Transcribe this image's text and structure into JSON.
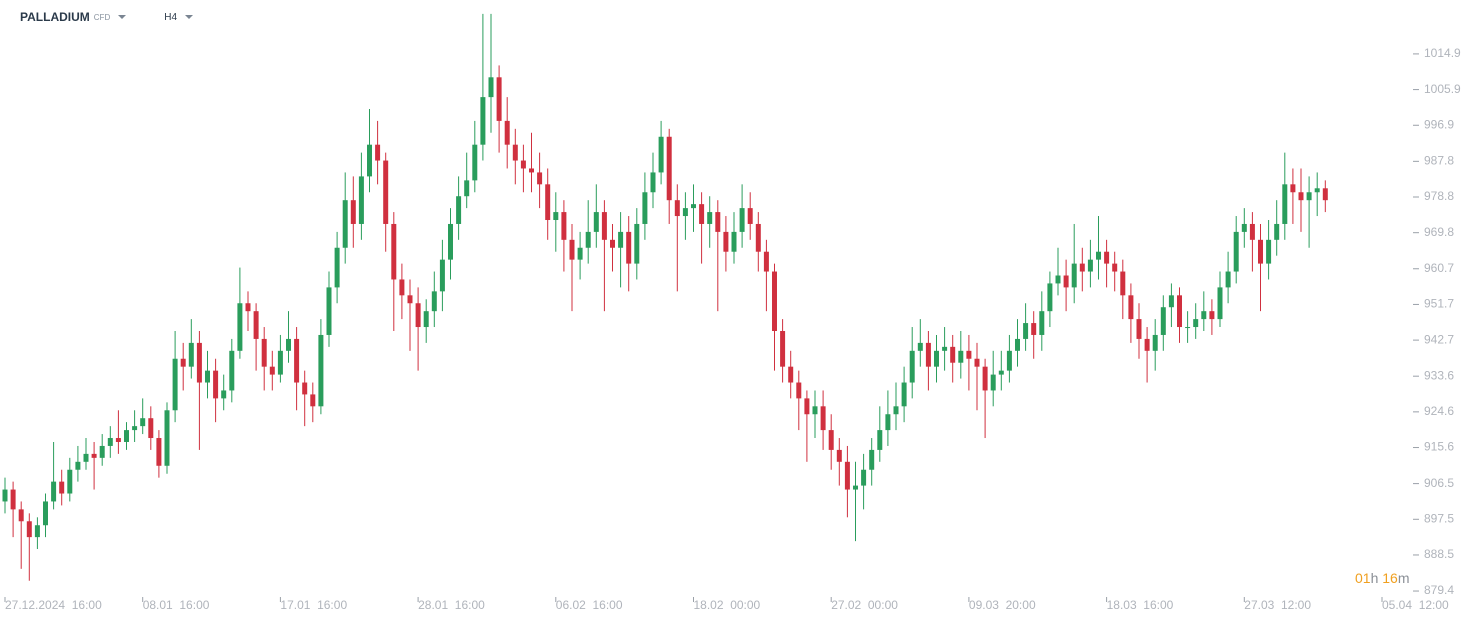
{
  "toolbar": {
    "symbol": "PALLADIUM",
    "type": "CFD",
    "timeframe": "H4"
  },
  "timer": {
    "hours": "01",
    "hours_unit": "h",
    "minutes": "16",
    "minutes_unit": "m"
  },
  "chart_data": {
    "type": "candlestick",
    "up_color": "#2a9d5c",
    "down_color": "#d0303f",
    "ylim": [
      878.4,
      1028.5
    ],
    "yticks": [
      1014.9,
      1005.9,
      996.9,
      987.8,
      978.8,
      969.8,
      960.7,
      951.7,
      942.7,
      933.6,
      924.6,
      915.6,
      906.5,
      897.5,
      888.5,
      879.4
    ],
    "categories": [
      "27.12.2024  16:00",
      null,
      null,
      null,
      null,
      null,
      null,
      null,
      null,
      null,
      null,
      null,
      null,
      null,
      null,
      null,
      null,
      "08.01  16:00",
      null,
      null,
      null,
      null,
      null,
      null,
      null,
      null,
      null,
      null,
      null,
      null,
      null,
      null,
      null,
      null,
      "17.01  16:00",
      null,
      null,
      null,
      null,
      null,
      null,
      null,
      null,
      null,
      null,
      null,
      null,
      null,
      null,
      null,
      null,
      "28.01  16:00",
      null,
      null,
      null,
      null,
      null,
      null,
      null,
      null,
      null,
      null,
      null,
      null,
      null,
      null,
      null,
      null,
      "06.02  16:00",
      null,
      null,
      null,
      null,
      null,
      null,
      null,
      null,
      null,
      null,
      null,
      null,
      null,
      null,
      null,
      null,
      "18.02  00:00",
      null,
      null,
      null,
      null,
      null,
      null,
      null,
      null,
      null,
      null,
      null,
      null,
      null,
      null,
      null,
      null,
      "27.02  00:00",
      null,
      null,
      null,
      null,
      null,
      null,
      null,
      null,
      null,
      null,
      null,
      null,
      null,
      null,
      null,
      null,
      "09.03  20:00",
      null,
      null,
      null,
      null,
      null,
      null,
      null,
      null,
      null,
      null,
      null,
      null,
      null,
      null,
      null,
      null,
      "18.03  16:00",
      null,
      null,
      null,
      null,
      null,
      null,
      null,
      null,
      null,
      null,
      null,
      null,
      null,
      null,
      null,
      null,
      "27.03  12:00",
      null,
      null,
      null,
      null,
      null,
      null,
      null,
      null,
      null,
      null,
      null,
      null,
      null,
      null,
      null,
      null,
      "05.04  12:00"
    ],
    "open": [
      902,
      905,
      900,
      897,
      893,
      896,
      902,
      907,
      904,
      910,
      912,
      914,
      913,
      916,
      918,
      917,
      920,
      921,
      923,
      918,
      911,
      925,
      938,
      936,
      942,
      932,
      935,
      928,
      930,
      940,
      952,
      950,
      943,
      936,
      934,
      940,
      943,
      932,
      929,
      926,
      944,
      956,
      966,
      978,
      972,
      984,
      992,
      988,
      972,
      958,
      954,
      952,
      946,
      950,
      955,
      963,
      972,
      979,
      983,
      992,
      1004,
      1009,
      998,
      992,
      988,
      986,
      985,
      982,
      973,
      975,
      968,
      963,
      966,
      970,
      975,
      968,
      966,
      970,
      962,
      972,
      980,
      985,
      994,
      978,
      974,
      976,
      977,
      972,
      975,
      970,
      965,
      970,
      976,
      972,
      965,
      960,
      945,
      936,
      932,
      928,
      924,
      926,
      920,
      915,
      912,
      905,
      906,
      910,
      915,
      920,
      924,
      926,
      932,
      940,
      942,
      936,
      940,
      941,
      937,
      940,
      938,
      936,
      930,
      934,
      935,
      940,
      943,
      947,
      944,
      950,
      957,
      959,
      956,
      962,
      960,
      963,
      965,
      962,
      960,
      954,
      948,
      943,
      940,
      944,
      951,
      954,
      946,
      946,
      948,
      950,
      948,
      956,
      960,
      970,
      972,
      968,
      962,
      968,
      972,
      982,
      980,
      978,
      980,
      981,
      null,
      null,
      null,
      null,
      null,
      null,
      null
    ],
    "high": [
      908,
      907,
      902,
      899,
      898,
      904,
      917,
      910,
      913,
      916,
      918,
      917,
      919,
      921,
      925,
      922,
      925,
      928,
      926,
      920,
      927,
      945,
      942,
      948,
      945,
      940,
      938,
      934,
      943,
      961,
      955,
      952,
      946,
      940,
      944,
      950,
      946,
      935,
      932,
      948,
      960,
      970,
      985,
      984,
      990,
      1001,
      998,
      990,
      975,
      962,
      958,
      956,
      953,
      960,
      968,
      976,
      984,
      990,
      998,
      1025,
      1025,
      1012,
      1004,
      996,
      992,
      995,
      990,
      986,
      980,
      978,
      972,
      970,
      978,
      982,
      978,
      972,
      975,
      974,
      976,
      985,
      990,
      998,
      996,
      982,
      980,
      982,
      980,
      979,
      978,
      974,
      975,
      982,
      980,
      975,
      968,
      962,
      948,
      940,
      935,
      930,
      930,
      930,
      924,
      918,
      916,
      912,
      914,
      918,
      926,
      930,
      932,
      936,
      946,
      948,
      945,
      944,
      946,
      944,
      945,
      944,
      942,
      938,
      940,
      940,
      944,
      948,
      952,
      950,
      955,
      960,
      966,
      963,
      972,
      966,
      968,
      974,
      968,
      965,
      963,
      957,
      952,
      946,
      948,
      954,
      957,
      956,
      950,
      952,
      955,
      953,
      960,
      965,
      974,
      976,
      975,
      972,
      973,
      978,
      990,
      986,
      986,
      984,
      985,
      983,
      null,
      null,
      null,
      null,
      null,
      null,
      null
    ],
    "low": [
      899,
      893,
      885,
      882,
      890,
      893,
      900,
      901,
      902,
      907,
      910,
      905,
      911,
      913,
      914,
      915,
      917,
      919,
      915,
      908,
      909,
      922,
      930,
      933,
      915,
      928,
      922,
      925,
      927,
      938,
      945,
      935,
      930,
      930,
      932,
      937,
      925,
      921,
      922,
      924,
      941,
      952,
      962,
      966,
      968,
      980,
      982,
      965,
      945,
      948,
      940,
      935,
      942,
      946,
      950,
      958,
      968,
      976,
      980,
      988,
      995,
      990,
      986,
      982,
      980,
      980,
      976,
      968,
      965,
      960,
      950,
      958,
      962,
      966,
      950,
      960,
      956,
      955,
      958,
      968,
      976,
      982,
      972,
      955,
      968,
      970,
      962,
      966,
      950,
      960,
      962,
      966,
      968,
      960,
      950,
      935,
      932,
      928,
      920,
      912,
      918,
      915,
      910,
      906,
      898,
      892,
      900,
      906,
      912,
      916,
      920,
      922,
      928,
      936,
      930,
      932,
      935,
      932,
      933,
      930,
      925,
      918,
      926,
      930,
      932,
      936,
      940,
      938,
      940,
      946,
      954,
      950,
      952,
      955,
      956,
      958,
      956,
      955,
      948,
      942,
      938,
      932,
      935,
      940,
      946,
      942,
      942,
      943,
      945,
      944,
      946,
      952,
      957,
      966,
      960,
      950,
      958,
      964,
      968,
      972,
      970,
      966,
      974,
      975,
      null,
      null,
      null,
      null,
      null,
      null,
      null
    ],
    "close": [
      905,
      900,
      897,
      893,
      896,
      902,
      907,
      904,
      910,
      912,
      914,
      913,
      916,
      918,
      917,
      920,
      921,
      923,
      918,
      911,
      925,
      938,
      936,
      942,
      932,
      935,
      928,
      930,
      940,
      952,
      950,
      943,
      936,
      934,
      940,
      943,
      932,
      929,
      926,
      944,
      956,
      966,
      978,
      972,
      984,
      992,
      988,
      972,
      958,
      954,
      952,
      946,
      950,
      955,
      963,
      972,
      979,
      983,
      992,
      1004,
      1009,
      998,
      992,
      988,
      986,
      985,
      982,
      973,
      975,
      968,
      963,
      966,
      970,
      975,
      968,
      966,
      970,
      962,
      972,
      980,
      985,
      994,
      978,
      974,
      976,
      977,
      972,
      975,
      970,
      965,
      970,
      976,
      972,
      965,
      960,
      945,
      936,
      932,
      928,
      924,
      926,
      920,
      915,
      912,
      905,
      906,
      910,
      915,
      920,
      924,
      926,
      932,
      940,
      942,
      936,
      940,
      941,
      937,
      940,
      938,
      936,
      930,
      934,
      935,
      940,
      943,
      947,
      944,
      950,
      957,
      959,
      956,
      962,
      960,
      963,
      965,
      962,
      960,
      954,
      948,
      943,
      940,
      944,
      951,
      954,
      946,
      946,
      948,
      950,
      948,
      956,
      960,
      970,
      972,
      968,
      962,
      968,
      972,
      982,
      980,
      978,
      980,
      981,
      978,
      null,
      null,
      null,
      null,
      null,
      null,
      null
    ]
  }
}
